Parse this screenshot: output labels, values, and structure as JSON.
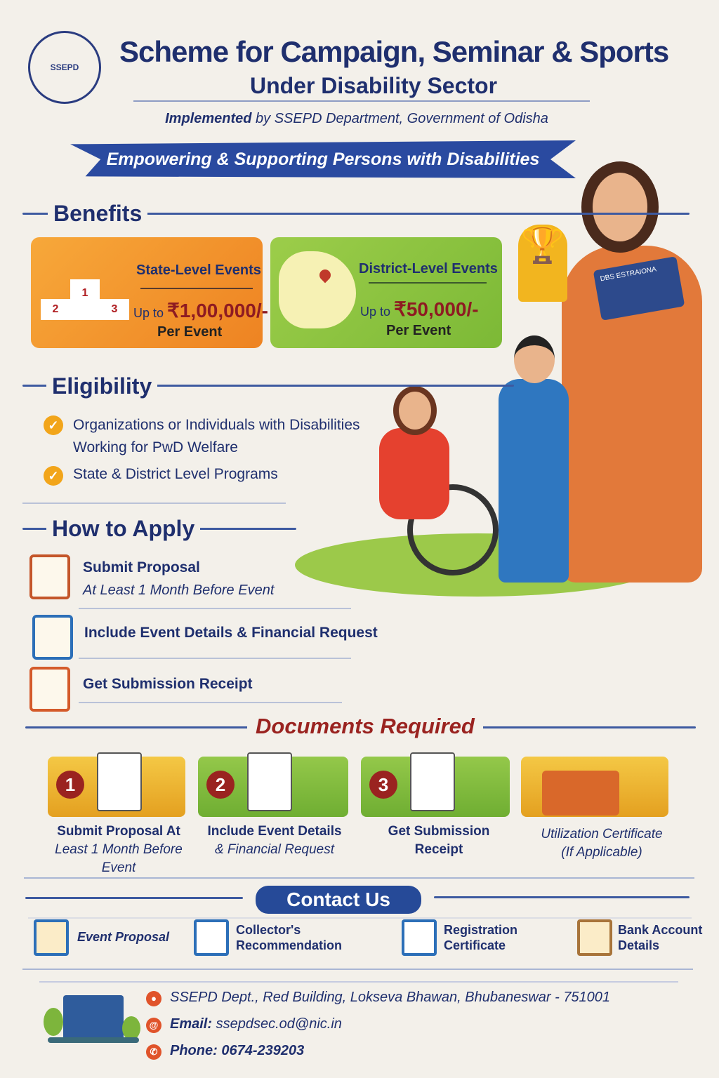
{
  "header": {
    "logo_text": "SSEPD",
    "title": "Scheme for Campaign, Seminar & Sports",
    "subtitle": "Under Disability Sector",
    "implemented_bold": "Implemented",
    "implemented_rest": " by SSEPD Department, Government of Odisha",
    "banner": "Empowering & Supporting Persons with Disabilities"
  },
  "benefits": {
    "heading": "Benefits",
    "cards": [
      {
        "title": "State-Level Events",
        "upto": "Up to ",
        "amount": "₹1,00,000/-",
        "per": "Per Event",
        "icon": "podium-trophy-icon",
        "podium": [
          "1",
          "2",
          "3"
        ]
      },
      {
        "title": "District-Level Events",
        "upto": "Up to ",
        "amount": "₹50,000/-",
        "per": "Per Event",
        "icon": "map-pin-icon"
      }
    ]
  },
  "eligibility": {
    "heading": "Eligibility",
    "items": [
      "Organizations or Individuals with Disabilities Working for PwD Welfare",
      "State & District Level Programs"
    ]
  },
  "how_to_apply": {
    "heading": "How to Apply",
    "steps": [
      {
        "title": "Submit Proposal",
        "note": "At Least 1 Month Before Event"
      },
      {
        "title": "Include Event Details & Financial Request"
      },
      {
        "title": "Get Submission Receipt"
      }
    ]
  },
  "documents": {
    "heading": "Documents Required",
    "items": [
      {
        "num": "1",
        "line1": "Submit Proposal At",
        "line2": "Least 1 Month Before Event"
      },
      {
        "num": "2",
        "line1": "Include Event Details",
        "line2": "& Financial Request"
      },
      {
        "num": "3",
        "line1": "Get Submission Receipt",
        "line2": ""
      },
      {
        "num": "",
        "line1": "Utilization Certificate",
        "line2": "(If Applicable)"
      }
    ]
  },
  "contact": {
    "heading": "Contact Us",
    "items": [
      "Event Proposal",
      "Collector's Recommendation",
      "Registration Certificate",
      "Bank Account Details"
    ],
    "address": "SSEPD Dept., Red Building, Lokseva Bhawan, Bhubaneswar - 751001",
    "email_label": "Email:",
    "email": "ssepdsec.od@nic.in",
    "phone_label": "Phone:",
    "phone": "0674-239203"
  },
  "illustration": {
    "card_text": "DBS ESTRAIONA"
  },
  "colors": {
    "navy": "#1f2f6e",
    "banner": "#2a4aa0",
    "orange_card": "#f2922a",
    "green_card": "#8cc63f",
    "dark_red": "#8e1b22",
    "check": "#f2a51a"
  }
}
